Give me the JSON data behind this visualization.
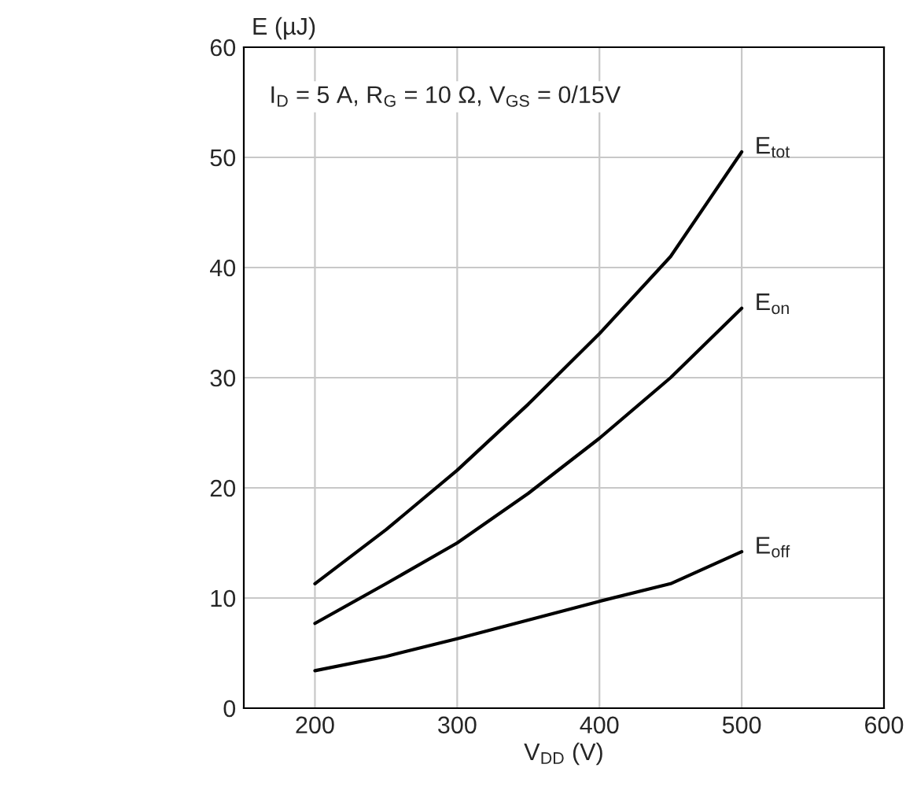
{
  "chart_data": {
    "type": "line",
    "xlabel": "V$_{DD}$ (V)",
    "ylabel": "E (µJ)",
    "annotations": [
      "I$_{D}$ = 5 A, R$_{G}$ = 10 Ω, V$_{GS}$ = 0/15V"
    ],
    "x": [
      200,
      250,
      300,
      350,
      400,
      450,
      500
    ],
    "series": [
      {
        "name": "E$_{tot}$",
        "color": "#000000",
        "values": [
          11.3,
          16.2,
          21.6,
          27.6,
          34,
          41,
          50.5
        ]
      },
      {
        "name": "E$_{on}$",
        "color": "#000000",
        "values": [
          7.7,
          11.3,
          15,
          19.5,
          24.5,
          30,
          36.3
        ]
      },
      {
        "name": "E$_{off}$",
        "color": "#000000",
        "values": [
          3.4,
          4.7,
          6.3,
          8,
          9.7,
          11.3,
          14.2
        ]
      }
    ],
    "xlim": [
      150,
      600
    ],
    "xticks": [
      200,
      300,
      400,
      500,
      600
    ],
    "ylim": [
      0,
      60
    ],
    "yticks": [
      0,
      10,
      20,
      30,
      40,
      50,
      60
    ],
    "grid": true,
    "legend": false,
    "marker": "none",
    "line_style": "solid"
  }
}
